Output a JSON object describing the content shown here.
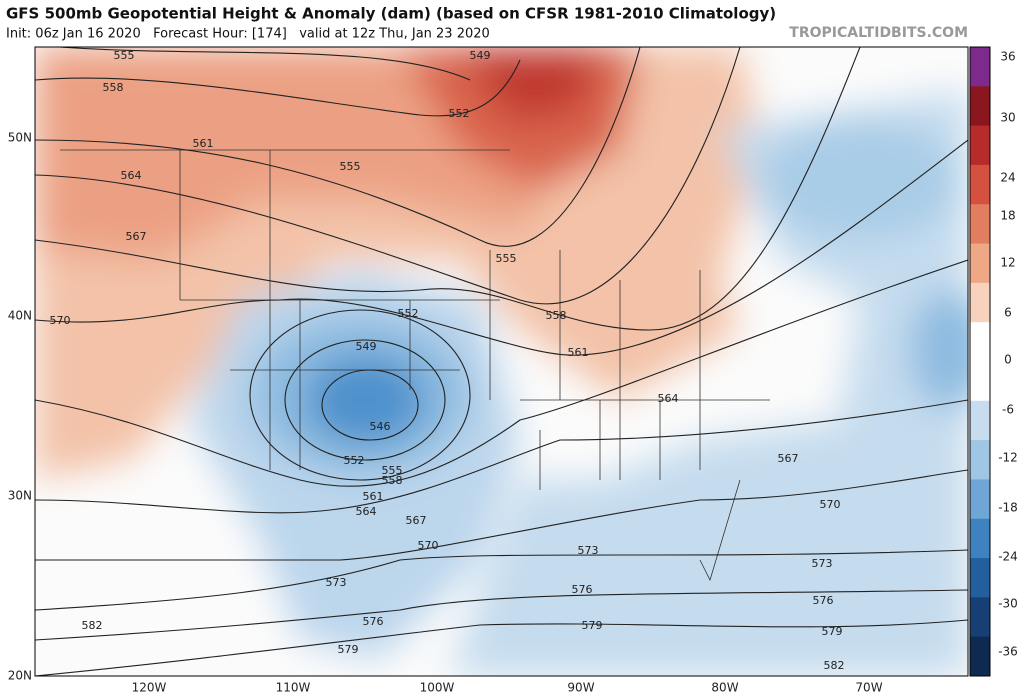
{
  "header": {
    "title": "GFS 500mb Geopotential Height & Anomaly (dam) (based on CFSR 1981-2010 Climatology)",
    "subtitle": "Init: 06z Jan 16 2020   Forecast Hour: [174]   valid at 12z Thu, Jan 23 2020",
    "site": "TROPICALTIDBITS.COM"
  },
  "latitude_labels": [
    "50N",
    "40N",
    "30N",
    "20N"
  ],
  "longitude_labels": [
    "120W",
    "110W",
    "100W",
    "90W",
    "80W",
    "70W"
  ],
  "colorbar_labels": [
    36,
    30,
    24,
    18,
    12,
    6,
    0,
    -6,
    -12,
    -18,
    -24,
    -30,
    -36
  ],
  "contour_labels": [
    555,
    558,
    561,
    564,
    567,
    570,
    549,
    552,
    555,
    555,
    558,
    561,
    564,
    567,
    570,
    573,
    573,
    576,
    576,
    579,
    579,
    582,
    582,
    552,
    549,
    546,
    552,
    555,
    558,
    561,
    564,
    567,
    570,
    573,
    576,
    579
  ]
}
